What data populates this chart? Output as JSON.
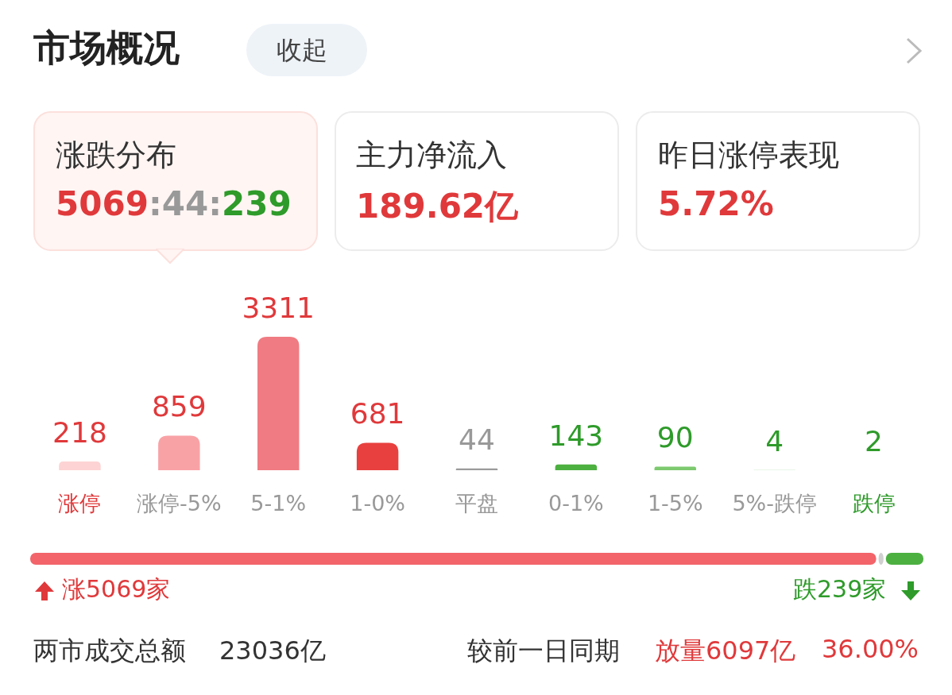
{
  "chart_data": {
    "type": "bar",
    "title": "市场概况",
    "categories": [
      "涨停",
      "涨停-5%",
      "5-1%",
      "1-0%",
      "平盘",
      "0-1%",
      "1-5%",
      "5%-跌停",
      "跌停"
    ],
    "values": [
      218,
      859,
      3311,
      681,
      44,
      143,
      90,
      4,
      2
    ],
    "colors": [
      "#fdd3d3",
      "#f9a2a6",
      "#f07b82",
      "#e8403e",
      "#9b9b9b",
      "#4cb040",
      "#7cc96f",
      "#a9dca1",
      "#d5ecd0"
    ],
    "data_labels": true,
    "annotations": [
      "收起",
      "涨跌分布",
      "5069:44:239",
      "主力净流入",
      "189.62亿",
      "昨日涨停表现",
      "5.72%",
      "涨5069家",
      "跌239家",
      "两市成交总额",
      "23036亿",
      "较前一日同期",
      "放量6097亿",
      "36.00%"
    ]
  }
}
